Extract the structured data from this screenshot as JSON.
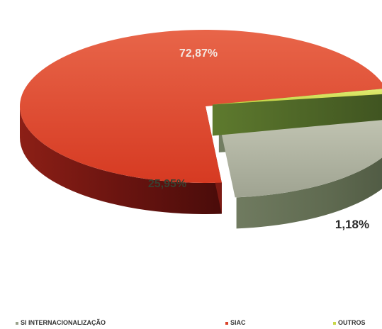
{
  "chart_data": {
    "type": "pie",
    "style": "3d-exploded",
    "slices": [
      {
        "name": "SIAC",
        "value": 72.87,
        "label": "72,87%",
        "color": "#d9432a"
      },
      {
        "name": "OUTROS",
        "value": 1.18,
        "label": "1,18%",
        "color": "#c8d84a"
      },
      {
        "name": "SI INTERNACIONALIZAÇÃO",
        "value": 25.95,
        "label": "25,95%",
        "color": "#a6aa98"
      }
    ],
    "legend": {
      "placement": "bottom",
      "items": [
        {
          "label": "SI INTERNACIONALIZAÇÃO",
          "color": "#9aa28c"
        },
        {
          "label": "SIAC",
          "color": "#d9432a"
        },
        {
          "label": "OUTROS",
          "color": "#c8d84a"
        }
      ]
    }
  }
}
